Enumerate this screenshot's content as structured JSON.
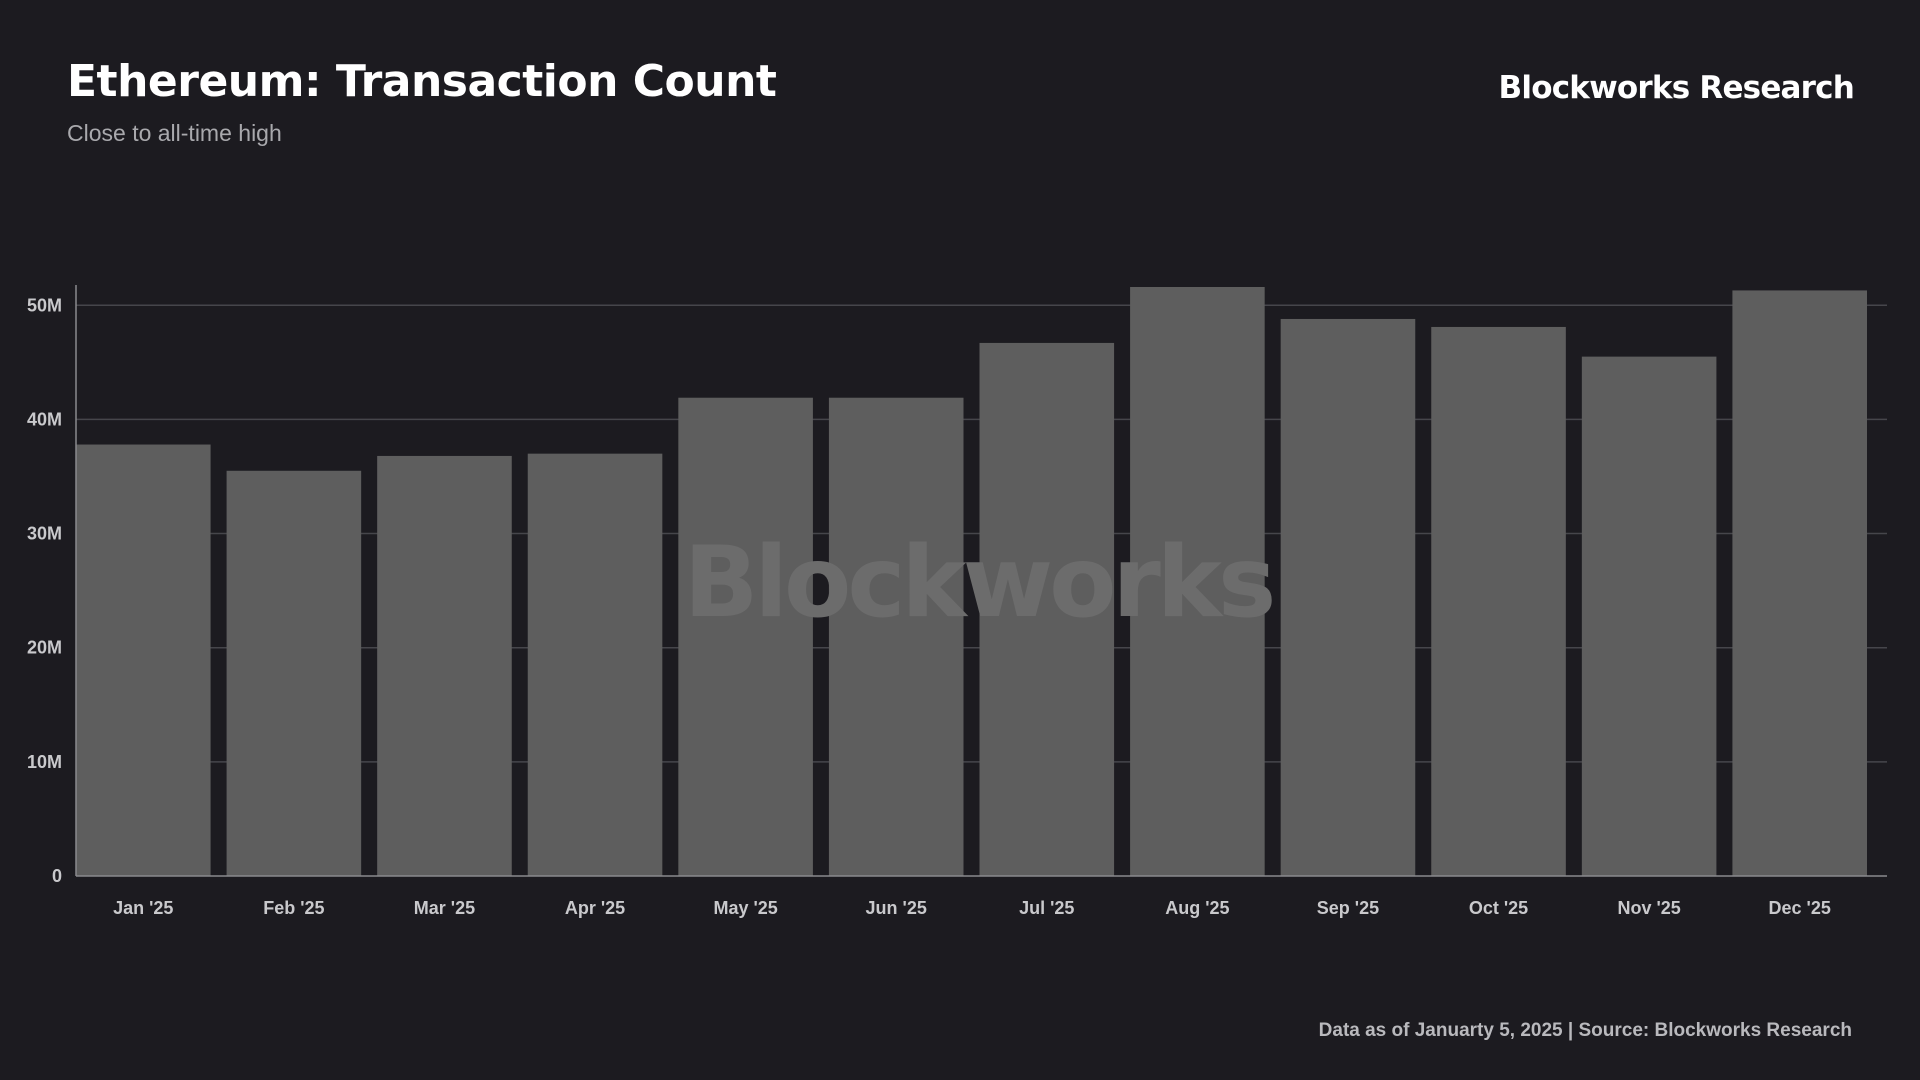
{
  "header": {
    "title": "Ethereum: Transaction Count",
    "subtitle": "Close to all-time high",
    "brand": "Blockworks Research"
  },
  "watermark": "Blockworks",
  "footer": {
    "note": "Data as of Januarty 5, 2025 | Source: Blockworks Research"
  },
  "colors": {
    "background": "#1c1b20",
    "bar": "#5e5e5e",
    "gridline": "#46464b"
  },
  "chart_data": {
    "type": "bar",
    "title": "Ethereum: Transaction Count",
    "subtitle": "Close to all-time high",
    "xlabel": "",
    "ylabel": "",
    "categories": [
      "Jan '25",
      "Feb '25",
      "Mar '25",
      "Apr '25",
      "May '25",
      "Jun '25",
      "Jul '25",
      "Aug '25",
      "Sep '25",
      "Oct '25",
      "Nov '25",
      "Dec '25"
    ],
    "values": [
      37800000,
      35500000,
      36800000,
      37000000,
      41900000,
      41900000,
      46700000,
      51600000,
      48800000,
      48100000,
      45500000,
      51300000
    ],
    "ylim": [
      0,
      51600000
    ],
    "yticks": [
      0,
      10000000,
      20000000,
      30000000,
      40000000,
      50000000
    ],
    "ytick_labels": [
      "0",
      "10M",
      "20M",
      "30M",
      "40M",
      "50M"
    ],
    "grid": true,
    "legend": "none"
  }
}
